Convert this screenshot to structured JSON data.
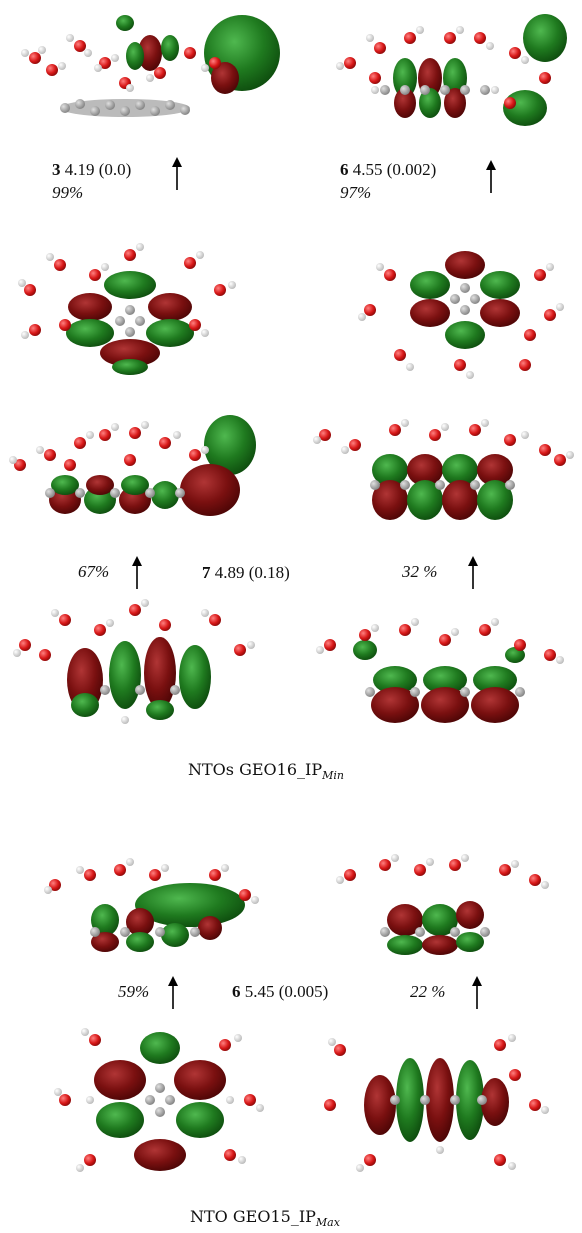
{
  "panel_a": {
    "row1": {
      "left": {
        "label_num": "3",
        "label_rest": " 4.19  (0.0)",
        "weight": "99%"
      },
      "right": {
        "label_num": "6",
        "label_rest": " 4.55 (0.002)",
        "weight": "97%"
      }
    },
    "state7": {
      "label_num": "7",
      "label_rest": " 4.89 (0.18)",
      "weight_left": "67%",
      "weight_right": "32 %"
    },
    "caption_main": "NTOs GEO16_IP",
    "caption_sub": "Min"
  },
  "panel_b": {
    "state6": {
      "label_num": "6",
      "label_rest": " 5.45 (0.005)",
      "weight_left": "59%",
      "weight_right": "22 %"
    },
    "caption_main": "NTO GEO15_IP",
    "caption_sub": "Max"
  },
  "colors": {
    "lobe_green": "#1f7a1f",
    "lobe_red": "#7a1010",
    "oxygen": "#d81818",
    "hydrogen": "#e8e8e8",
    "carbon": "#a8a8a8"
  }
}
